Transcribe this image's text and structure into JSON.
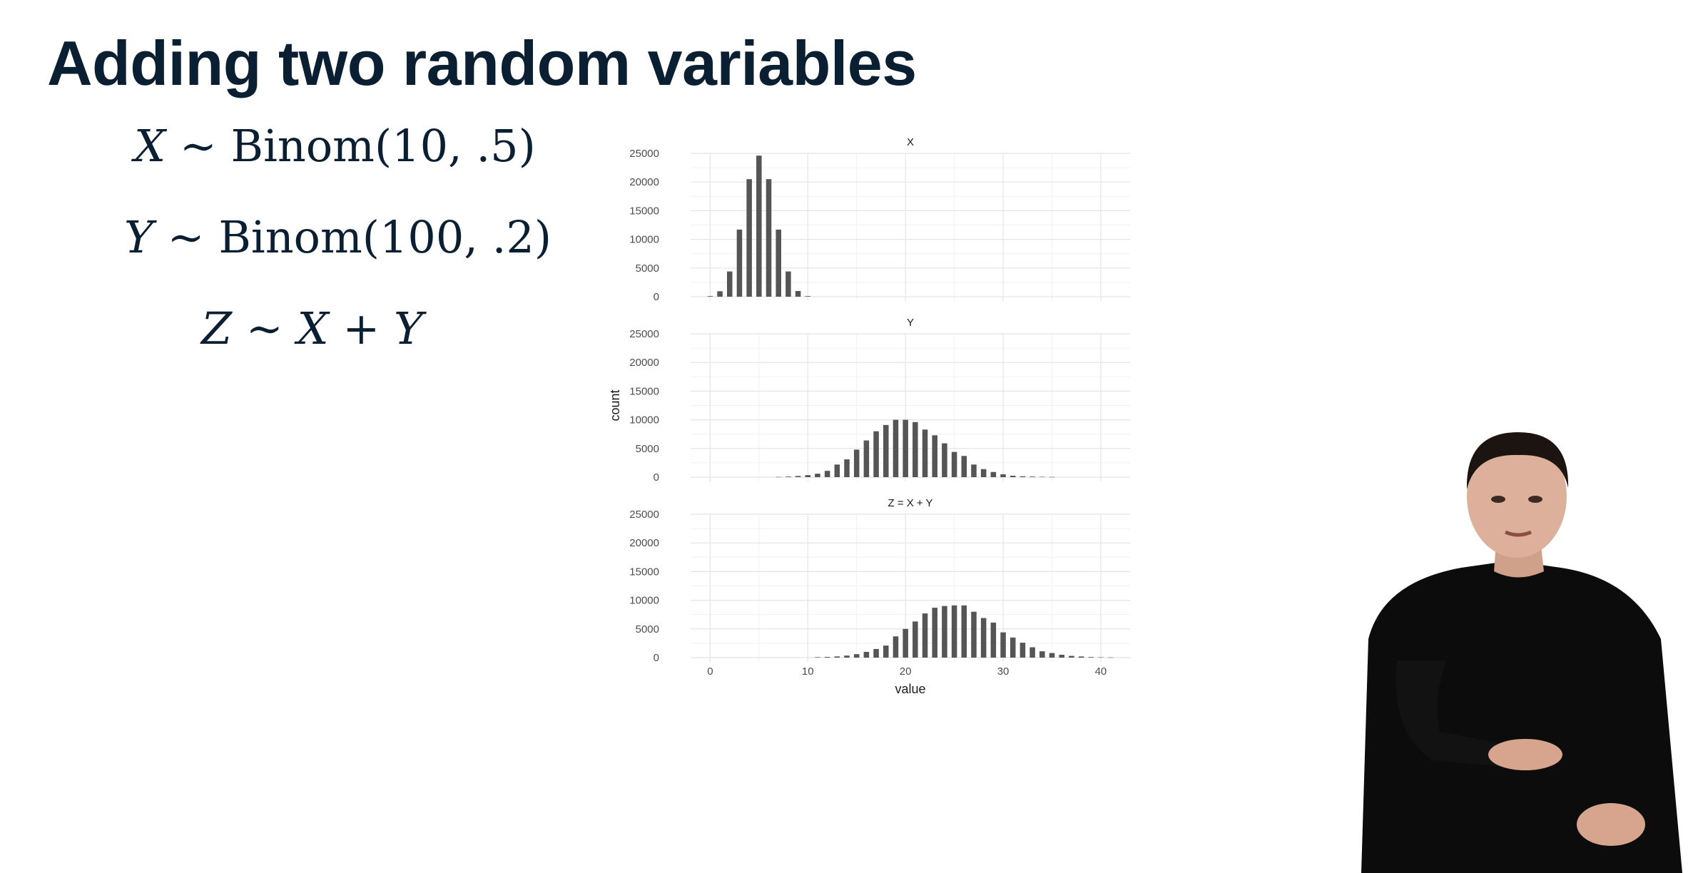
{
  "slide": {
    "title": "Adding two random variables"
  },
  "formulas": {
    "x": {
      "var": "X",
      "rel": "∼",
      "dist": "Binom(10, .5)"
    },
    "y": {
      "var": "Y",
      "rel": "∼",
      "dist": "Binom(100, .2)"
    },
    "z": {
      "var": "Z",
      "rel": "∼",
      "a": "X",
      "op": "+",
      "b": "Y"
    }
  },
  "chart_data": {
    "type": "bar",
    "xlabel": "value",
    "ylabel": "count",
    "xlim": [
      -2,
      43
    ],
    "ylim": [
      0,
      25000
    ],
    "x_ticks": [
      0,
      10,
      20,
      30,
      40
    ],
    "y_ticks": [
      0,
      5000,
      10000,
      15000,
      20000,
      25000
    ],
    "grid": true,
    "bar_color": "#555555",
    "facets": [
      {
        "label": "X",
        "x": [
          0,
          1,
          2,
          3,
          4,
          5,
          6,
          7,
          8,
          9,
          10
        ],
        "values": [
          100,
          950,
          4400,
          11700,
          20500,
          24600,
          20500,
          11700,
          4400,
          1000,
          100
        ]
      },
      {
        "label": "Y",
        "x": [
          7,
          8,
          9,
          10,
          11,
          12,
          13,
          14,
          15,
          16,
          17,
          18,
          19,
          20,
          21,
          22,
          23,
          24,
          25,
          26,
          27,
          28,
          29,
          30,
          31,
          32,
          33,
          34,
          35
        ],
        "values": [
          40,
          100,
          200,
          350,
          600,
          1100,
          2200,
          3100,
          4800,
          6400,
          8000,
          9100,
          10000,
          10000,
          9600,
          8300,
          7300,
          5900,
          4400,
          3700,
          2200,
          1400,
          900,
          500,
          250,
          150,
          100,
          60,
          30
        ]
      },
      {
        "label": "Z = X + Y",
        "x": [
          11,
          12,
          13,
          14,
          15,
          16,
          17,
          18,
          19,
          20,
          21,
          22,
          23,
          24,
          25,
          26,
          27,
          28,
          29,
          30,
          31,
          32,
          33,
          34,
          35,
          36,
          37,
          38,
          39,
          40,
          41
        ],
        "values": [
          80,
          120,
          200,
          350,
          600,
          1000,
          1500,
          2100,
          3700,
          5000,
          6300,
          7700,
          8700,
          9000,
          9100,
          9100,
          8000,
          6900,
          6100,
          4400,
          3500,
          2600,
          1800,
          1100,
          800,
          500,
          300,
          200,
          100,
          60,
          30
        ]
      }
    ]
  },
  "presenter": {
    "icon": "presenter-video-icon"
  }
}
